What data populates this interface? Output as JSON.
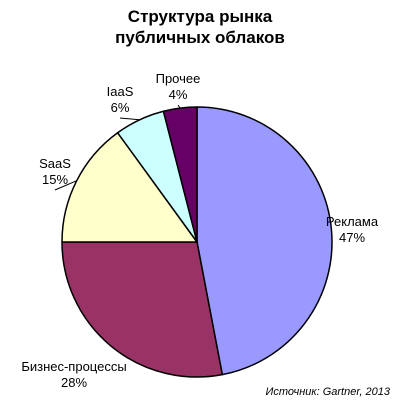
{
  "chart_data": {
    "type": "pie",
    "title_lines": [
      "Структура рынка",
      "публичных облаков"
    ],
    "slices": [
      {
        "label": "Реклама",
        "value": 47,
        "value_label": "47%",
        "color": "#9999ff"
      },
      {
        "label": "Бизнес-процессы",
        "value": 28,
        "value_label": "28%",
        "color": "#993366"
      },
      {
        "label": "SaaS",
        "value": 15,
        "value_label": "15%",
        "color": "#ffffcc"
      },
      {
        "label": "IaaS",
        "value": 6,
        "value_label": "6%",
        "color": "#ccffff"
      },
      {
        "label": "Прочее",
        "value": 4,
        "value_label": "4%",
        "color": "#660066"
      }
    ],
    "start_angle_deg": 0,
    "direction": "clockwise",
    "legend": "none",
    "source": "Источник: Gartner, 2013"
  }
}
